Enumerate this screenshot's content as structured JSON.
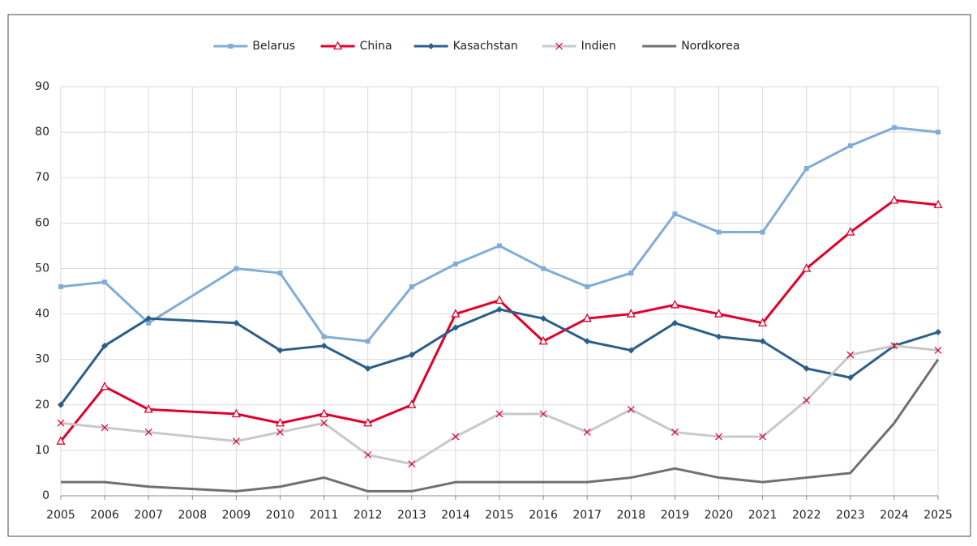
{
  "chart_data": {
    "type": "line",
    "x": [
      2005,
      2006,
      2007,
      2009,
      2010,
      2011,
      2012,
      2013,
      2014,
      2015,
      2016,
      2017,
      2018,
      2019,
      2020,
      2021,
      2022,
      2023,
      2024,
      2025
    ],
    "series": [
      {
        "name": "Belarus",
        "color": "#7fadd6",
        "marker": "square",
        "values": [
          46,
          47,
          38,
          50,
          49,
          35,
          34,
          46,
          51,
          55,
          50,
          46,
          49,
          62,
          58,
          58,
          72,
          77,
          81,
          80
        ]
      },
      {
        "name": "China",
        "color": "#e0002a",
        "marker": "triangle",
        "values": [
          12,
          24,
          19,
          18,
          16,
          18,
          16,
          20,
          40,
          43,
          34,
          39,
          40,
          42,
          40,
          38,
          50,
          58,
          65,
          64
        ]
      },
      {
        "name": "Kasachstan",
        "color": "#2b5f8a",
        "marker": "diamond",
        "values": [
          20,
          33,
          39,
          38,
          32,
          33,
          28,
          31,
          37,
          41,
          39,
          34,
          32,
          38,
          35,
          34,
          28,
          26,
          33,
          36
        ]
      },
      {
        "name": "Indien",
        "color": "#c8c8c8",
        "marker": "cross",
        "values": [
          16,
          15,
          14,
          12,
          14,
          16,
          9,
          7,
          13,
          18,
          18,
          14,
          19,
          14,
          13,
          13,
          21,
          31,
          33,
          32
        ]
      },
      {
        "name": "Nordkorea",
        "color": "#707070",
        "marker": "none",
        "values": [
          3,
          3,
          2,
          1,
          2,
          4,
          1,
          1,
          3,
          3,
          3,
          3,
          4,
          6,
          4,
          3,
          4,
          5,
          16,
          30
        ]
      }
    ],
    "xlim": [
      2005,
      2025
    ],
    "xticks": [
      2005,
      2006,
      2007,
      2008,
      2009,
      2010,
      2011,
      2012,
      2013,
      2014,
      2015,
      2016,
      2017,
      2018,
      2019,
      2020,
      2021,
      2022,
      2023,
      2024,
      2025
    ],
    "ylim": [
      0,
      90
    ],
    "yticks": [
      0,
      10,
      20,
      30,
      40,
      50,
      60,
      70,
      80,
      90
    ],
    "grid": true,
    "legend": "top"
  }
}
